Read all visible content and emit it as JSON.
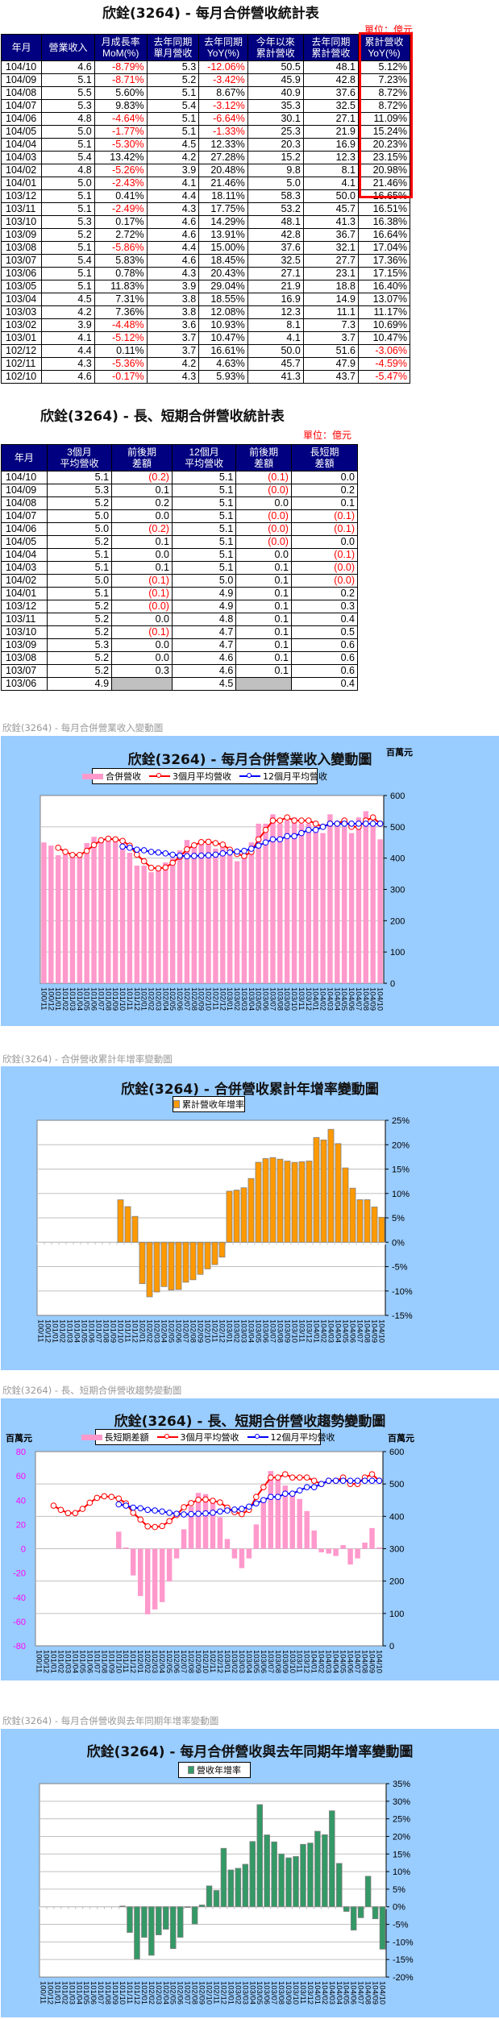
{
  "table1": {
    "title": "欣銓(3264)  - 每月合併營收統計表",
    "unit": "單位：億元",
    "headers": [
      "年月",
      "營業收入",
      "月成長率\nMoM(%)",
      "去年同期\n單月營收",
      "去年同期\nYoY(%)",
      "今年以來\n累計營收",
      "去年同期\n累計營收",
      "累計營收\nYoY(%)"
    ],
    "highlight_color": "#ff0000",
    "rows": [
      [
        "104/10",
        "4.6",
        "-8.79%",
        "5.3",
        "-12.06%",
        "50.5",
        "48.1",
        "5.12%"
      ],
      [
        "104/09",
        "5.1",
        "-8.71%",
        "5.2",
        "-3.42%",
        "45.9",
        "42.8",
        "7.23%"
      ],
      [
        "104/08",
        "5.5",
        "5.60%",
        "5.1",
        "8.67%",
        "40.9",
        "37.6",
        "8.72%"
      ],
      [
        "104/07",
        "5.3",
        "9.83%",
        "5.4",
        "-3.12%",
        "35.3",
        "32.5",
        "8.72%"
      ],
      [
        "104/06",
        "4.8",
        "-4.64%",
        "5.1",
        "-6.64%",
        "30.1",
        "27.1",
        "11.09%"
      ],
      [
        "104/05",
        "5.0",
        "-1.77%",
        "5.1",
        "-1.33%",
        "25.3",
        "21.9",
        "15.24%"
      ],
      [
        "104/04",
        "5.1",
        "-5.30%",
        "4.5",
        "12.33%",
        "20.3",
        "16.9",
        "20.23%"
      ],
      [
        "104/03",
        "5.4",
        "13.42%",
        "4.2",
        "27.28%",
        "15.2",
        "12.3",
        "23.15%"
      ],
      [
        "104/02",
        "4.8",
        "-5.26%",
        "3.9",
        "20.48%",
        "9.8",
        "8.1",
        "20.98%"
      ],
      [
        "104/01",
        "5.0",
        "-2.43%",
        "4.1",
        "21.46%",
        "5.0",
        "4.1",
        "21.46%"
      ],
      [
        "103/12",
        "5.1",
        "0.41%",
        "4.4",
        "18.11%",
        "58.3",
        "50.0",
        "16.65%"
      ],
      [
        "103/11",
        "5.1",
        "-2.49%",
        "4.3",
        "17.75%",
        "53.2",
        "45.7",
        "16.51%"
      ],
      [
        "103/10",
        "5.3",
        "0.17%",
        "4.6",
        "14.29%",
        "48.1",
        "41.3",
        "16.38%"
      ],
      [
        "103/09",
        "5.2",
        "2.72%",
        "4.6",
        "13.91%",
        "42.8",
        "36.7",
        "16.64%"
      ],
      [
        "103/08",
        "5.1",
        "-5.86%",
        "4.4",
        "15.00%",
        "37.6",
        "32.1",
        "17.04%"
      ],
      [
        "103/07",
        "5.4",
        "5.83%",
        "4.6",
        "18.45%",
        "32.5",
        "27.7",
        "17.36%"
      ],
      [
        "103/06",
        "5.1",
        "0.78%",
        "4.3",
        "20.43%",
        "27.1",
        "23.1",
        "17.15%"
      ],
      [
        "103/05",
        "5.1",
        "11.83%",
        "3.9",
        "29.04%",
        "21.9",
        "18.8",
        "16.40%"
      ],
      [
        "103/04",
        "4.5",
        "7.31%",
        "3.8",
        "18.55%",
        "16.9",
        "14.9",
        "13.07%"
      ],
      [
        "103/03",
        "4.2",
        "7.36%",
        "3.8",
        "12.08%",
        "12.3",
        "11.1",
        "11.17%"
      ],
      [
        "103/02",
        "3.9",
        "-4.48%",
        "3.6",
        "10.93%",
        "8.1",
        "7.3",
        "10.69%"
      ],
      [
        "103/01",
        "4.1",
        "-5.12%",
        "3.7",
        "10.47%",
        "4.1",
        "3.7",
        "10.47%"
      ],
      [
        "102/12",
        "4.4",
        "0.11%",
        "3.7",
        "16.61%",
        "50.0",
        "51.6",
        "-3.06%"
      ],
      [
        "102/11",
        "4.3",
        "-5.36%",
        "4.2",
        "4.63%",
        "45.7",
        "47.9",
        "-4.59%"
      ],
      [
        "102/10",
        "4.6",
        "-0.17%",
        "4.3",
        "5.93%",
        "41.3",
        "43.7",
        "-5.47%"
      ]
    ]
  },
  "table2": {
    "title": "欣銓(3264)  - 長、短期合併營收統計表",
    "unit": "單位：億元",
    "headers": [
      "年月",
      "3個月\n平均營收",
      "前後期\n差額",
      "12個月\n平均營收",
      "前後期\n差額",
      "長短期\n差額"
    ],
    "rows": [
      [
        "104/10",
        "5.1",
        "(0.2)",
        "5.1",
        "(0.1)",
        "0.0"
      ],
      [
        "104/09",
        "5.3",
        "0.1",
        "5.1",
        "(0.0)",
        "0.2"
      ],
      [
        "104/08",
        "5.2",
        "0.2",
        "5.1",
        "0.0",
        "0.1"
      ],
      [
        "104/07",
        "5.0",
        "0.0",
        "5.1",
        "(0.0)",
        "(0.1)"
      ],
      [
        "104/06",
        "5.0",
        "(0.2)",
        "5.1",
        "(0.0)",
        "(0.1)"
      ],
      [
        "104/05",
        "5.2",
        "0.1",
        "5.1",
        "(0.0)",
        "0.0"
      ],
      [
        "104/04",
        "5.1",
        "0.0",
        "5.1",
        "0.0",
        "(0.1)"
      ],
      [
        "104/03",
        "5.1",
        "0.1",
        "5.1",
        "0.1",
        "(0.0)"
      ],
      [
        "104/02",
        "5.0",
        "(0.1)",
        "5.0",
        "0.1",
        "(0.0)"
      ],
      [
        "104/01",
        "5.1",
        "(0.1)",
        "4.9",
        "0.1",
        "0.2"
      ],
      [
        "103/12",
        "5.2",
        "(0.0)",
        "4.9",
        "0.1",
        "0.3"
      ],
      [
        "103/11",
        "5.2",
        "0.0",
        "4.8",
        "0.1",
        "0.4"
      ],
      [
        "103/10",
        "5.2",
        "(0.1)",
        "4.7",
        "0.1",
        "0.5"
      ],
      [
        "103/09",
        "5.3",
        "0.0",
        "4.7",
        "0.1",
        "0.6"
      ],
      [
        "103/08",
        "5.2",
        "0.0",
        "4.6",
        "0.1",
        "0.6"
      ],
      [
        "103/07",
        "5.2",
        "0.3",
        "4.6",
        "0.1",
        "0.6"
      ],
      [
        "103/06",
        "4.9",
        "",
        "4.5",
        "",
        "0.4"
      ]
    ]
  },
  "captions": [
    "欣銓(3264)  - 每月合併營業收入變動圖",
    "欣銓(3264)  -  合併營收累計年增率變動圖",
    "欣銓(3264)  -  長、短期合併營收趨勢變動圖",
    "欣銓(3264)  -  每月合併營收與去年同期年增率變動圖"
  ],
  "chart_data": [
    {
      "type": "bar+line",
      "title": "欣銓(3264)  - 每月合併營業收入變動圖",
      "y_unit_right": "百萬元",
      "legend_placement": "top",
      "grid": true,
      "ylim_right": [
        0,
        600
      ],
      "y_ticks_right": [
        "600",
        "500",
        "400",
        "300",
        "200",
        "100",
        "0"
      ],
      "categories": [
        "100/11",
        "100/12",
        "101/01",
        "101/02",
        "101/03",
        "101/04",
        "101/05",
        "101/06",
        "101/07",
        "101/08",
        "101/09",
        "101/10",
        "101/11",
        "101/12",
        "102/01",
        "102/02",
        "102/03",
        "102/04",
        "102/05",
        "102/06",
        "102/07",
        "102/08",
        "102/09",
        "102/10",
        "102/11",
        "102/12",
        "103/01",
        "103/02",
        "103/03",
        "103/04",
        "103/05",
        "103/06",
        "103/07",
        "103/08",
        "103/09",
        "103/10",
        "103/11",
        "103/12",
        "104/01",
        "104/02",
        "104/03",
        "104/04",
        "104/05",
        "104/06",
        "104/07",
        "104/08",
        "104/09",
        "104/10"
      ],
      "series": [
        {
          "name": "合併營收",
          "type": "bar",
          "color": "#ff99cc",
          "axis": "right",
          "values": [
            450,
            440,
            409,
            411,
            410,
            410,
            448,
            468,
            455,
            463,
            462,
            440,
            417,
            376,
            376,
            355,
            370,
            386,
            400,
            425,
            458,
            440,
            455,
            460,
            430,
            440,
            410,
            390,
            420,
            450,
            510,
            510,
            540,
            510,
            520,
            530,
            510,
            510,
            500,
            480,
            540,
            510,
            500,
            480,
            530,
            550,
            510,
            460
          ]
        },
        {
          "name": "3個月平均營收",
          "type": "line",
          "color": "#ff0000",
          "axis": "right",
          "values": [
            null,
            null,
            433,
            420,
            410,
            410,
            423,
            442,
            457,
            462,
            460,
            455,
            440,
            411,
            390,
            369,
            367,
            370,
            385,
            404,
            428,
            441,
            451,
            452,
            448,
            443,
            427,
            413,
            407,
            420,
            460,
            490,
            520,
            520,
            530,
            520,
            520,
            520,
            510,
            500,
            510,
            510,
            520,
            500,
            500,
            520,
            530,
            510
          ]
        },
        {
          "name": "12個月平均營收",
          "type": "line",
          "color": "#0000ff",
          "axis": "right",
          "values": [
            null,
            null,
            null,
            null,
            null,
            null,
            null,
            null,
            null,
            null,
            null,
            437,
            433,
            427,
            425,
            420,
            418,
            415,
            411,
            408,
            406,
            407,
            408,
            409,
            411,
            415,
            418,
            421,
            423,
            430,
            440,
            450,
            460,
            460,
            470,
            470,
            480,
            490,
            490,
            500,
            510,
            510,
            510,
            510,
            510,
            510,
            510,
            510
          ]
        }
      ]
    },
    {
      "type": "bar",
      "title": "欣銓(3264)  -  合併營收累計年增率變動圖",
      "legend_placement": "top",
      "grid": true,
      "ylim_right": [
        -15,
        25
      ],
      "y_ticks_right": [
        "25%",
        "20%",
        "15%",
        "10%",
        "5%",
        "0%",
        "-5%",
        "-10%",
        "-15%"
      ],
      "categories": [
        "100/11",
        "100/12",
        "101/01",
        "101/02",
        "101/03",
        "101/04",
        "101/05",
        "101/06",
        "101/07",
        "101/08",
        "101/09",
        "101/10",
        "101/11",
        "101/12",
        "102/01",
        "102/02",
        "102/03",
        "102/04",
        "102/05",
        "102/06",
        "102/07",
        "102/08",
        "102/09",
        "102/10",
        "102/11",
        "102/12",
        "103/01",
        "103/02",
        "103/03",
        "103/04",
        "103/05",
        "103/06",
        "103/07",
        "103/08",
        "103/09",
        "103/10",
        "103/11",
        "103/12",
        "104/01",
        "104/02",
        "104/03",
        "104/04",
        "104/05",
        "104/06",
        "104/07",
        "104/08",
        "104/09",
        "104/10"
      ],
      "series": [
        {
          "name": "累計營收年增率",
          "type": "bar",
          "color": "#ff9900",
          "axis": "right",
          "values": [
            null,
            null,
            null,
            null,
            null,
            null,
            null,
            null,
            null,
            null,
            null,
            8.7,
            7.3,
            5.3,
            -8.5,
            -11.2,
            -10.2,
            -9.1,
            -9.8,
            -9.7,
            -8.2,
            -7.7,
            -6.6,
            -5.47,
            -4.59,
            -3.06,
            10.47,
            10.69,
            11.17,
            13.07,
            16.4,
            17.15,
            17.36,
            17.04,
            16.64,
            16.38,
            16.51,
            16.65,
            21.46,
            20.98,
            23.15,
            20.23,
            15.24,
            11.09,
            8.72,
            8.72,
            7.23,
            5.12
          ]
        }
      ]
    },
    {
      "type": "bar+line",
      "title": "欣銓(3264)  -  長、短期合併營收趨勢變動圖",
      "y_unit_left": "百萬元",
      "y_unit_right": "百萬元",
      "legend_placement": "top",
      "grid": true,
      "ylim_left": [
        -80,
        80
      ],
      "ylim_right": [
        0,
        600
      ],
      "y_ticks_left": [
        "80",
        "60",
        "40",
        "20",
        "0",
        "-20",
        "-40",
        "-60",
        "-80"
      ],
      "y_ticks_right": [
        "600",
        "500",
        "400",
        "300",
        "200",
        "100",
        "0"
      ],
      "left_axis_color": "#ff00ff",
      "categories": [
        "100/11",
        "100/12",
        "101/01",
        "101/02",
        "101/03",
        "101/04",
        "101/05",
        "101/06",
        "101/07",
        "101/08",
        "101/09",
        "101/10",
        "101/11",
        "101/12",
        "102/01",
        "102/02",
        "102/03",
        "102/04",
        "102/05",
        "102/06",
        "102/07",
        "102/08",
        "102/09",
        "102/10",
        "102/11",
        "102/12",
        "103/01",
        "103/02",
        "103/03",
        "103/04",
        "103/05",
        "103/06",
        "103/07",
        "103/08",
        "103/09",
        "103/10",
        "103/11",
        "103/12",
        "104/01",
        "104/02",
        "104/03",
        "104/04",
        "104/05",
        "104/06",
        "104/07",
        "104/08",
        "104/09",
        "104/10"
      ],
      "series": [
        {
          "name": "長短期差額",
          "type": "bar",
          "color": "#ff99cc",
          "axis": "left",
          "values": [
            null,
            null,
            null,
            null,
            null,
            null,
            null,
            null,
            null,
            null,
            null,
            14,
            1,
            -22,
            -39,
            -54,
            -50,
            -44,
            -27,
            -8,
            16,
            35,
            46,
            45,
            41,
            26,
            8,
            -8,
            -16,
            -8,
            20,
            42,
            64,
            59,
            52,
            46,
            41,
            31,
            15,
            -3,
            -4,
            -6,
            3,
            -13,
            -8,
            5,
            17,
            1
          ]
        },
        {
          "name": "3個月平均營收",
          "type": "line",
          "color": "#ff0000",
          "axis": "right",
          "values": [
            null,
            null,
            433,
            420,
            410,
            410,
            423,
            442,
            457,
            462,
            460,
            455,
            440,
            411,
            390,
            369,
            367,
            370,
            385,
            404,
            428,
            441,
            451,
            452,
            448,
            443,
            427,
            413,
            407,
            420,
            460,
            490,
            520,
            520,
            530,
            520,
            520,
            520,
            510,
            500,
            510,
            510,
            520,
            500,
            500,
            520,
            530,
            510
          ]
        },
        {
          "name": "12個月平均營收",
          "type": "line",
          "color": "#0000ff",
          "axis": "right",
          "values": [
            null,
            null,
            null,
            null,
            null,
            null,
            null,
            null,
            null,
            null,
            null,
            437,
            433,
            427,
            425,
            420,
            418,
            415,
            411,
            408,
            406,
            407,
            408,
            409,
            411,
            415,
            418,
            421,
            423,
            430,
            440,
            450,
            460,
            460,
            470,
            470,
            480,
            490,
            490,
            500,
            510,
            510,
            510,
            510,
            510,
            510,
            510,
            510
          ]
        }
      ]
    },
    {
      "type": "bar",
      "title": "欣銓(3264)  -  每月合併營收與去年同期年增率變動圖",
      "legend_placement": "top",
      "grid": true,
      "ylim_right": [
        -20,
        35
      ],
      "y_ticks_right": [
        "35%",
        "30%",
        "25%",
        "20%",
        "15%",
        "10%",
        "5%",
        "0%",
        "-5%",
        "-10%",
        "-15%",
        "-20%"
      ],
      "categories": [
        "100/11",
        "100/12",
        "101/01",
        "101/02",
        "101/03",
        "101/04",
        "101/05",
        "101/06",
        "101/07",
        "101/08",
        "101/09",
        "101/10",
        "101/11",
        "101/12",
        "102/01",
        "102/02",
        "102/03",
        "102/04",
        "102/05",
        "102/06",
        "102/07",
        "102/08",
        "102/09",
        "102/10",
        "102/11",
        "102/12",
        "103/01",
        "103/02",
        "103/03",
        "103/04",
        "103/05",
        "103/06",
        "103/07",
        "103/08",
        "103/09",
        "103/10",
        "103/11",
        "103/12",
        "104/01",
        "104/02",
        "104/03",
        "104/04",
        "104/05",
        "104/06",
        "104/07",
        "104/08",
        "104/09",
        "104/10"
      ],
      "series": [
        {
          "name": "營收年增率",
          "type": "bar",
          "color": "#339966",
          "axis": "right",
          "values": [
            null,
            null,
            null,
            null,
            null,
            null,
            null,
            null,
            null,
            null,
            null,
            0.2,
            -7.3,
            -14.9,
            -8.7,
            -13.8,
            -8.0,
            -6.4,
            -11.9,
            -8.7,
            -0.2,
            -4.9,
            0.5,
            5.93,
            4.63,
            16.61,
            10.47,
            10.93,
            12.08,
            18.55,
            29.04,
            20.43,
            18.45,
            15.0,
            13.91,
            14.29,
            17.75,
            18.11,
            21.46,
            20.48,
            27.28,
            12.33,
            -1.33,
            -6.64,
            -3.12,
            8.67,
            -3.42,
            -12.06
          ]
        }
      ]
    }
  ]
}
